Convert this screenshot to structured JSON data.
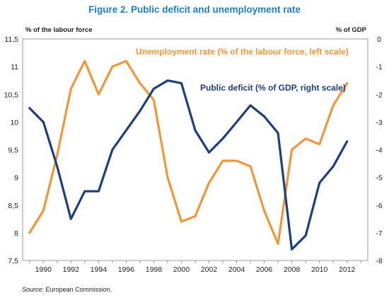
{
  "title": "Figure 2. Public deficit and unemployment rate",
  "source_label": "Source",
  "source_text": ": European Commission.",
  "chart_data": {
    "type": "line",
    "y_left_label": "% of the labour force",
    "y_right_label": "% of GDP",
    "y_left_lim": [
      7.5,
      11.5
    ],
    "y_left_ticks": [
      "7,5",
      "8",
      "8,5",
      "9",
      "9,5",
      "10",
      "10,5",
      "11",
      "11,5"
    ],
    "y_right_lim": [
      -8,
      0
    ],
    "y_right_ticks": [
      "-8",
      "-7",
      "-6",
      "-5",
      "-4",
      "-3",
      "-2",
      "-1",
      "0"
    ],
    "x_ticks": [
      "1990",
      "1992",
      "1994",
      "1996",
      "1998",
      "2000",
      "2002",
      "2004",
      "2006",
      "2008",
      "2010",
      "2012"
    ],
    "x_lim": [
      1988.5,
      2013.5
    ],
    "grid": false,
    "series": [
      {
        "name": "Unemployment rate (% of the labour force, left scale)",
        "axis": "left",
        "color": "#f0963c",
        "x": [
          1989,
          1990,
          1991,
          1992,
          1993,
          1994,
          1995,
          1996,
          1997,
          1998,
          1999,
          2000,
          2001,
          2002,
          2003,
          2004,
          2005,
          2006,
          2007,
          2008,
          2009,
          2010,
          2011,
          2012
        ],
        "values": [
          8.0,
          8.4,
          9.4,
          10.6,
          11.1,
          10.5,
          11.0,
          11.1,
          10.7,
          10.4,
          9.0,
          8.2,
          8.3,
          8.9,
          9.3,
          9.3,
          9.2,
          8.4,
          7.8,
          9.5,
          9.7,
          9.6,
          10.3,
          10.7
        ]
      },
      {
        "name": "Public deficit (% of GDP, right scale)",
        "axis": "right",
        "color": "#1f3f7a",
        "x": [
          1989,
          1990,
          1991,
          1992,
          1993,
          1994,
          1995,
          1996,
          1997,
          1998,
          1999,
          2000,
          2001,
          2002,
          2003,
          2004,
          2005,
          2006,
          2007,
          2008,
          2009,
          2010,
          2011,
          2012
        ],
        "values": [
          -2.5,
          -3.0,
          -4.6,
          -6.5,
          -5.5,
          -5.5,
          -4.0,
          -3.3,
          -2.6,
          -1.8,
          -1.5,
          -1.6,
          -3.3,
          -4.1,
          -3.6,
          -3.0,
          -2.4,
          -2.8,
          -3.4,
          -7.6,
          -7.1,
          -5.2,
          -4.6,
          -3.7
        ]
      }
    ]
  }
}
